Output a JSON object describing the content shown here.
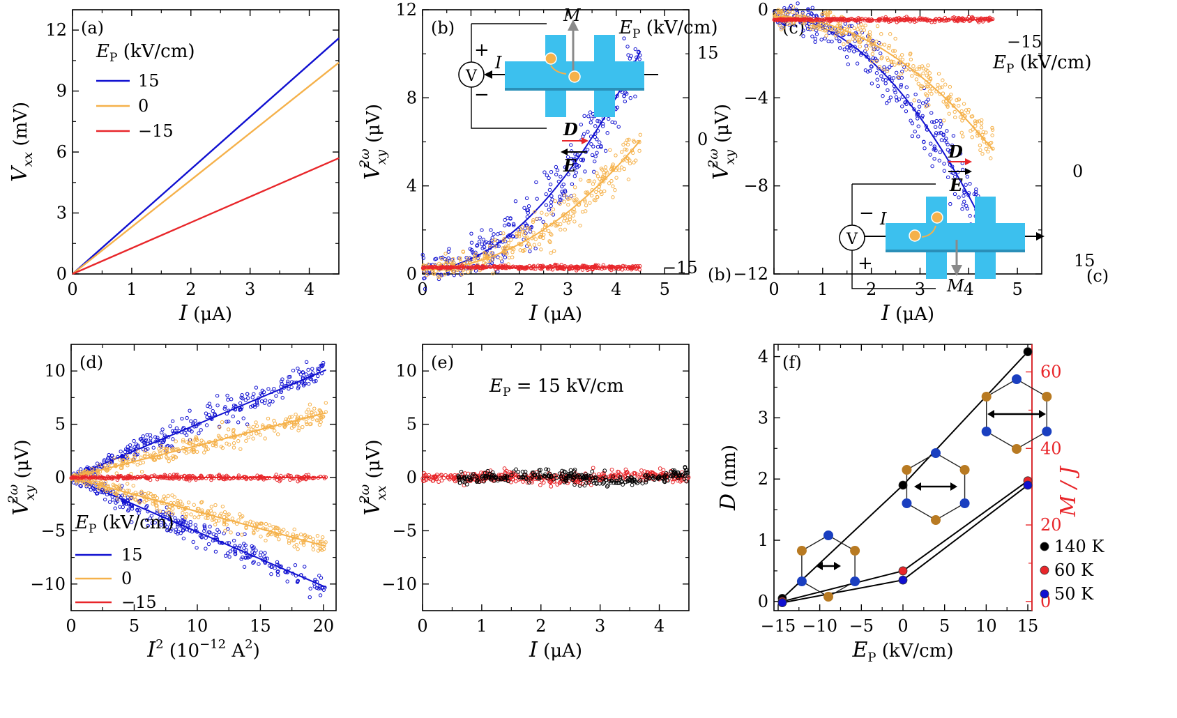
{
  "colors": {
    "blue": "#1010d0",
    "orange": "#f5b14a",
    "red": "#e8262a",
    "black": "#000000",
    "cyan": "#3cc0ee",
    "gray": "#8a8a8a",
    "brown": "#b87a22",
    "ball_blue": "#1a3fc0"
  },
  "chart_data": [
    {
      "id": "a",
      "type": "line",
      "panel_label": "(a)",
      "x_quantity": "I",
      "x_unit": "(μA)",
      "y_quantity": "V",
      "y_sub": "xx",
      "y_sup": "",
      "y_unit": "(mV)",
      "xlim": [
        0,
        4.5
      ],
      "ylim": [
        0,
        13
      ],
      "xticks": [
        0,
        1,
        2,
        3,
        4
      ],
      "yticks": [
        0,
        3,
        6,
        9,
        12
      ],
      "legend_title": "E",
      "legend_sub": "P",
      "legend_unit": "(kV/cm)",
      "series": [
        {
          "name": "15",
          "color": "blue",
          "x": [
            0,
            4.5
          ],
          "y": [
            0,
            11.6
          ]
        },
        {
          "name": "0",
          "color": "orange",
          "x": [
            0,
            4.5
          ],
          "y": [
            0,
            10.4
          ]
        },
        {
          "name": "−15",
          "color": "red",
          "x": [
            0,
            4.5
          ],
          "y": [
            0,
            5.7
          ]
        }
      ]
    },
    {
      "id": "b",
      "type": "scatter",
      "panel_label": "(b)",
      "x_quantity": "I",
      "x_unit": "(μA)",
      "y_quantity": "V",
      "y_sub": "xy",
      "y_sup": "2ω",
      "y_unit": "(μV)",
      "xlim": [
        0,
        5.5
      ],
      "ylim": [
        0,
        12
      ],
      "xticks": [
        0,
        1,
        2,
        3,
        4,
        5
      ],
      "yticks": [
        0,
        4,
        8,
        12
      ],
      "series": [
        {
          "name": "15",
          "color": "blue",
          "x_end": 4.5,
          "fit_quadratic": 0.49,
          "fit_offset": 0.2,
          "noise": 0.7,
          "n": 320
        },
        {
          "name": "0",
          "color": "orange",
          "x_end": 4.5,
          "fit_quadratic": 0.29,
          "fit_offset": 0.2,
          "noise": 0.45,
          "n": 320
        },
        {
          "name": "−15",
          "color": "red",
          "x_end": 4.5,
          "fit_quadratic": 0.0,
          "fit_offset": 0.3,
          "noise": 0.05,
          "n": 320
        }
      ],
      "annotations": {
        "curve_15": "15",
        "curve_0": "0",
        "curve_m15": "−15",
        "ep_title": "E",
        "ep_sub": "P",
        "ep_unit": "(kV/cm)",
        "label_M": "M",
        "label_I": "I",
        "label_D": "D",
        "label_E": "E",
        "voltmeter": "V",
        "plus": "+",
        "minus": "−"
      }
    },
    {
      "id": "c",
      "type": "scatter",
      "panel_label": "(c)",
      "x_quantity": "I",
      "x_unit": "(μA)",
      "y_quantity": "V",
      "y_sub": "xy",
      "y_sup": "2ω",
      "y_unit": "(μV)",
      "xlim": [
        0,
        5.5
      ],
      "ylim": [
        -12,
        0
      ],
      "xticks": [
        0,
        1,
        2,
        3,
        4,
        5
      ],
      "yticks": [
        -12,
        -8,
        -4,
        0
      ],
      "series": [
        {
          "name": "15",
          "color": "blue",
          "x_end": 4.5,
          "fit_quadratic": -0.51,
          "fit_offset": -0.3,
          "noise": 0.7,
          "n": 320
        },
        {
          "name": "0",
          "color": "orange",
          "x_end": 4.5,
          "fit_quadratic": -0.3,
          "fit_offset": -0.3,
          "noise": 0.45,
          "n": 320
        },
        {
          "name": "−15",
          "color": "red",
          "x_end": 4.5,
          "fit_quadratic": 0.0,
          "fit_offset": -0.45,
          "noise": 0.05,
          "n": 320
        }
      ],
      "annotations": {
        "curve_15": "15",
        "curve_0": "0",
        "curve_m15": "−15",
        "ep_title": "E",
        "ep_sub": "P",
        "ep_unit": "(kV/cm)",
        "label_M": "M",
        "label_I": "I",
        "label_D": "D",
        "label_E": "E",
        "voltmeter": "V",
        "plus": "+",
        "minus": "−"
      }
    },
    {
      "id": "d",
      "type": "scatter",
      "panel_label": "(d)",
      "x_quantity": "I",
      "x_unit_text": "(10",
      "x_unit_exp": "−12",
      "x_unit_tail": " A",
      "x_unit_tail_exp": "2",
      "x_unit_close": ")",
      "y_quantity": "V",
      "y_sub": "xy",
      "y_sup": "2ω",
      "y_unit": "(μV)",
      "xlim": [
        0,
        21
      ],
      "ylim": [
        -12.5,
        12.5
      ],
      "xticks": [
        0,
        5,
        10,
        15,
        20
      ],
      "yticks": [
        -10,
        -5,
        0,
        5,
        10
      ],
      "legend_title": "E",
      "legend_sub": "P",
      "legend_unit": "(kV/cm)",
      "series": [
        {
          "name": "15",
          "color": "blue",
          "slope": 0.5,
          "noise": 0.6,
          "n": 300
        },
        {
          "name": "15",
          "color": "blue",
          "slope": -0.51,
          "noise": 0.6,
          "n": 300
        },
        {
          "name": "0",
          "color": "orange",
          "slope": 0.3,
          "noise": 0.45,
          "n": 300
        },
        {
          "name": "0",
          "color": "orange",
          "slope": -0.32,
          "noise": 0.45,
          "n": 300
        },
        {
          "name": "−15",
          "color": "red",
          "slope": 0.0,
          "noise": 0.12,
          "n": 300
        }
      ],
      "x_end": 20.2
    },
    {
      "id": "e",
      "type": "scatter",
      "panel_label": "(e)",
      "x_quantity": "I",
      "x_unit": "(μA)",
      "y_quantity": "V",
      "y_sub": "xx",
      "y_sup": "2ω",
      "y_unit": "(μV)",
      "xlim": [
        0,
        4.5
      ],
      "ylim": [
        -12.5,
        12.5
      ],
      "xticks": [
        0,
        1,
        2,
        3,
        4
      ],
      "yticks": [
        -10,
        -5,
        0,
        5,
        10
      ],
      "annotation_ep": "E",
      "annotation_sub": "P",
      "annotation_eq": "= 15 kV/cm",
      "series": [
        {
          "name": "red",
          "color": "red",
          "noise": 0.25,
          "n": 420,
          "drift": 0.3
        },
        {
          "name": "black",
          "color": "black",
          "noise": 0.3,
          "n": 300,
          "drift": -0.4
        }
      ]
    },
    {
      "id": "f",
      "type": "line",
      "panel_label": "(f)",
      "x_quantity": "E",
      "x_sub": "P",
      "x_unit": "(kV/cm)",
      "y_quantity": "D",
      "y_unit": "(nm)",
      "y2_label": "M / J",
      "xlim": [
        -15.5,
        15.5
      ],
      "ylim": [
        -0.15,
        4.2
      ],
      "y2lim": [
        -2.4,
        67.2
      ],
      "xticks": [
        -15,
        -10,
        -5,
        0,
        5,
        10,
        15
      ],
      "yticks": [
        0,
        1,
        2,
        3,
        4
      ],
      "y2ticks": [
        0,
        20,
        40,
        60
      ],
      "series": [
        {
          "name": "140 K",
          "color": "black",
          "x": [
            -14.5,
            0,
            15
          ],
          "y": [
            0.05,
            1.9,
            4.08
          ]
        },
        {
          "name": "60 K",
          "color": "red",
          "x": [
            -14.5,
            0,
            15
          ],
          "y": [
            0.0,
            0.5,
            1.97
          ]
        },
        {
          "name": "50 K",
          "color": "blue",
          "x": [
            -14.5,
            0,
            15
          ],
          "y": [
            -0.02,
            0.35,
            1.9
          ]
        }
      ]
    }
  ]
}
